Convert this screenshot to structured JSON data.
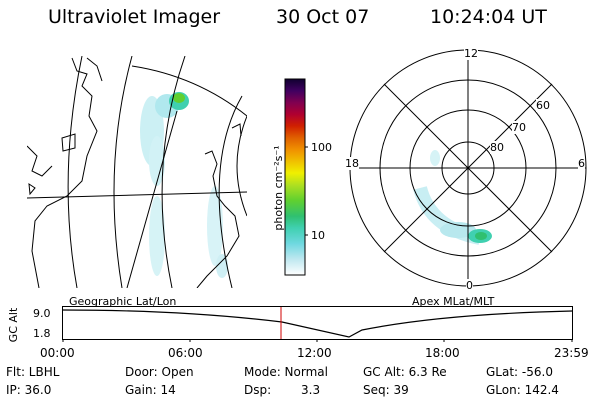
{
  "header": {
    "instrument": "Ultraviolet Imager",
    "date": "30 Oct 07",
    "time": "10:24:04 UT"
  },
  "geo_panel": {
    "label": "Geographic Lat/Lon"
  },
  "polar_panel": {
    "label": "Apex MLat/MLT",
    "mlt_labels": {
      "top": "12",
      "right": "6",
      "bottom": "0",
      "left": "18"
    },
    "lat_labels": [
      "60",
      "70",
      "80"
    ]
  },
  "colorbar": {
    "unit_label": "photon cm⁻²s⁻¹",
    "ticks": [
      "100",
      "10"
    ],
    "colors": [
      "#ffffff",
      "#bfe8f0",
      "#6fd8e0",
      "#40d0b0",
      "#30c070",
      "#60d030",
      "#b0e020",
      "#f0f000",
      "#f0c000",
      "#f09000",
      "#e06000",
      "#d02000",
      "#b00030",
      "#800050",
      "#400060",
      "#100030"
    ]
  },
  "altitude_plot": {
    "ylabel": "GC Alt",
    "y_ticks": [
      "9.0",
      "1.8"
    ],
    "x_ticks": [
      "00:00",
      "06:00",
      "12:00",
      "18:00",
      "23:59"
    ],
    "marker_time": "10:24"
  },
  "info": {
    "flt": "Flt: LBHL",
    "ip": "IP: 36.0",
    "door": "Door: Open",
    "gain": "Gain: 14",
    "mode": "Mode: Normal",
    "dsp_label": "Dsp:",
    "dsp_value": "3.3",
    "gc_alt": "GC Alt: 6.3 Re",
    "seq": "Seq: 39",
    "glat": "GLat: -56.0",
    "glon": "GLon: 142.4"
  }
}
